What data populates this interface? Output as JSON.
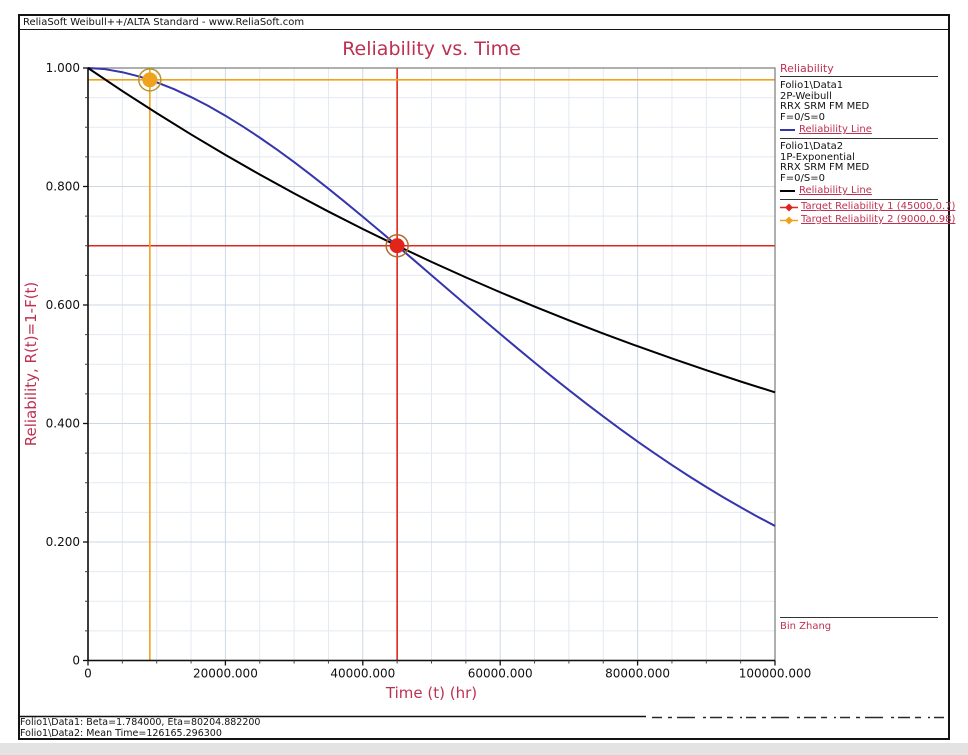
{
  "window": {
    "titlebar": "ReliaSoft Weibull++/ALTA Standard - www.ReliaSoft.com"
  },
  "chart_data": {
    "type": "line",
    "title": "Reliability vs. Time",
    "xlabel": "Time (t) (hr)",
    "ylabel": "Reliability, R(t)=1-F(t)",
    "xlim": [
      0,
      100000
    ],
    "ylim": [
      0,
      1
    ],
    "grid": true,
    "legend_position": "right",
    "x_ticks": {
      "values": [
        0,
        20000,
        40000,
        60000,
        80000,
        100000
      ],
      "labels": [
        "0",
        "20000.000",
        "40000.000",
        "60000.000",
        "80000.000",
        "100000.000"
      ]
    },
    "y_ticks": {
      "values": [
        1,
        0.8,
        0.6,
        0.4,
        0.2,
        0
      ],
      "labels": [
        "1.000",
        "0.800",
        "0.600",
        "0.400",
        "0.200",
        "0"
      ]
    },
    "x_minor_step": 5000,
    "y_minor_step": 0.05,
    "series": [
      {
        "id": "weibull",
        "name": "Folio1\\Data1 2P-Weibull Reliability Line",
        "color": "#3535ac",
        "params": {
          "beta": 1.784,
          "eta": 80204.8822
        },
        "x": [
          0,
          2500,
          5000,
          7500,
          10000,
          12500,
          15000,
          17500,
          20000,
          22500,
          25000,
          27500,
          30000,
          32500,
          35000,
          37500,
          40000,
          42500,
          45000,
          47500,
          50000,
          52500,
          55000,
          57500,
          60000,
          62500,
          65000,
          67500,
          70000,
          72500,
          75000,
          77500,
          80000,
          82500,
          85000,
          87500,
          90000,
          92500,
          95000,
          97500,
          100000
        ],
        "y": [
          1,
          0.998,
          0.9929,
          0.9855,
          0.9759,
          0.9644,
          0.951,
          0.936,
          0.9195,
          0.9016,
          0.8825,
          0.8623,
          0.8412,
          0.8191,
          0.7963,
          0.7729,
          0.749,
          0.7247,
          0.7,
          0.6752,
          0.6503,
          0.6253,
          0.6004,
          0.5757,
          0.5512,
          0.5269,
          0.5029,
          0.4794,
          0.4564,
          0.4338,
          0.4119,
          0.3904,
          0.3696,
          0.3494,
          0.3298,
          0.311,
          0.2928,
          0.2753,
          0.2586,
          0.2425,
          0.2271
        ]
      },
      {
        "id": "exponential",
        "name": "Folio1\\Data2 1P-Exponential Reliability Line",
        "color": "#000000",
        "params": {
          "mean_time": 126165.2963
        },
        "x": [
          0,
          5000,
          10000,
          15000,
          20000,
          25000,
          30000,
          35000,
          40000,
          45000,
          50000,
          55000,
          60000,
          65000,
          70000,
          75000,
          80000,
          85000,
          90000,
          95000,
          100000
        ],
        "y": [
          1,
          0.9611,
          0.9238,
          0.8879,
          0.8534,
          0.8202,
          0.7884,
          0.7577,
          0.7283,
          0.7,
          0.6728,
          0.6466,
          0.6215,
          0.5974,
          0.5742,
          0.5518,
          0.5304,
          0.5098,
          0.49,
          0.4709,
          0.4526
        ]
      }
    ],
    "targets": [
      {
        "id": "target-1",
        "label": "Target Reliability 1 (45000,0.7)",
        "x": 45000,
        "y": 0.7,
        "color": "#e1251b",
        "ring": "#b06a2e"
      },
      {
        "id": "target-2",
        "label": "Target Reliability 2 (9000,0.98)",
        "x": 9000,
        "y": 0.98,
        "color": "#efa31d",
        "ring": "#b8952e"
      }
    ]
  },
  "legend": {
    "header": "Reliability",
    "groups": [
      {
        "lines": [
          "Folio1\\Data1",
          "2P-Weibull",
          "RRX SRM FM MED",
          "F=0/S=0"
        ],
        "entry": "Reliability Line",
        "swatch_color": "#3535ac"
      },
      {
        "lines": [
          "Folio1\\Data2",
          "1P-Exponential",
          "RRX SRM FM MED",
          "F=0/S=0"
        ],
        "entry": "Reliability Line",
        "swatch_color": "#000000"
      }
    ],
    "targets": [
      {
        "label": "Target Reliability 1 (45000,0.7)",
        "color": "#e1251b"
      },
      {
        "label": "Target Reliability 2 (9000,0.98)",
        "color": "#efa31d"
      }
    ],
    "analyst": "Bin Zhang"
  },
  "footer": {
    "line1": "Folio1\\Data1: Beta=1.784000, Eta=80204.882200",
    "line2": "Folio1\\Data2: Mean Time=126165.296300"
  },
  "colors": {
    "crimson": "#bf3152",
    "frame": "#141414"
  }
}
